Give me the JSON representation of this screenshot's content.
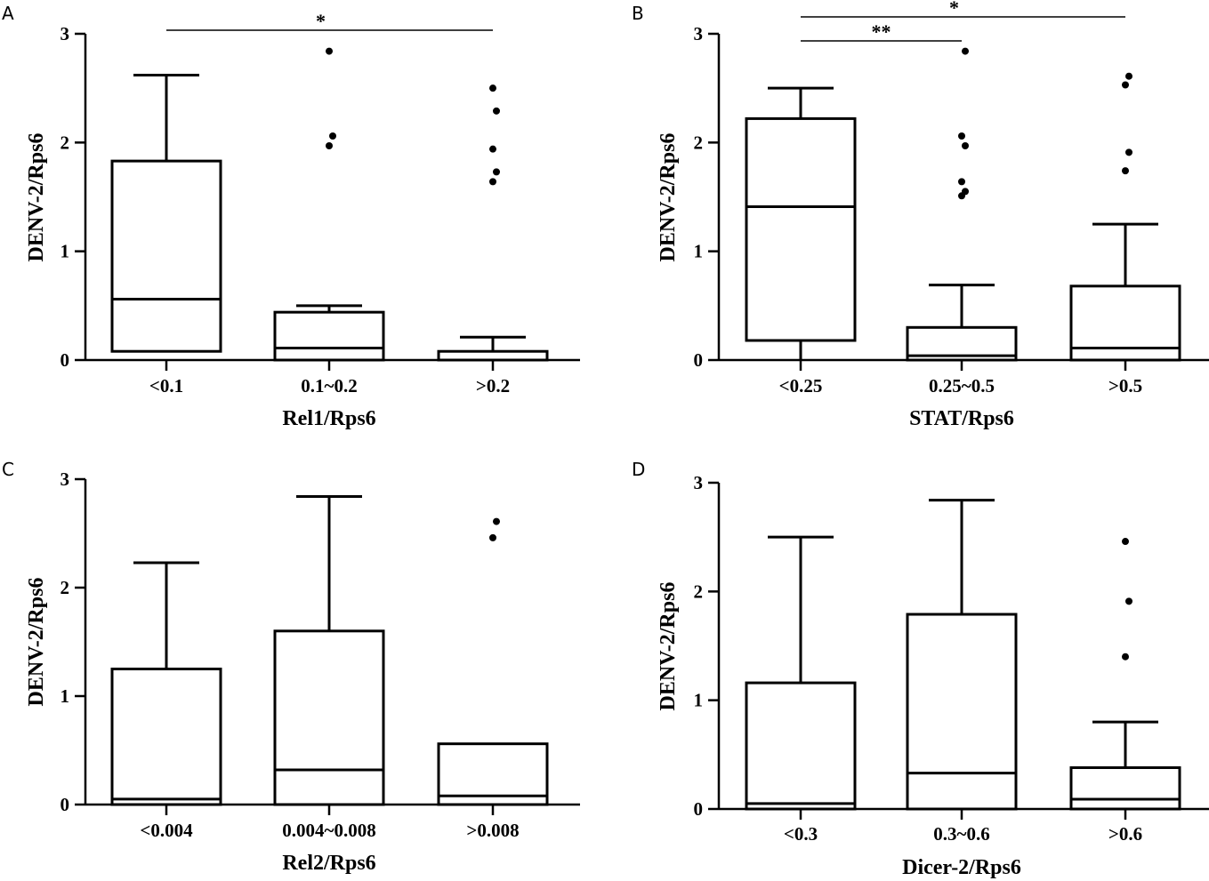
{
  "figure": {
    "description_free": true
  },
  "chart_data": [
    {
      "type": "box",
      "panel": "A",
      "xlabel": "Rel1/Rps6",
      "ylabel": "DENV-2/Rps6",
      "ylim": [
        0,
        3
      ],
      "yticks": [
        "0",
        "1",
        "2",
        "3"
      ],
      "categories": [
        "<0.1",
        "0.1~0.2",
        ">0.2"
      ],
      "boxes": [
        {
          "whisker_low": 0.08,
          "q1": 0.08,
          "median": 0.56,
          "q3": 1.83,
          "whisker_high": 2.62,
          "outliers": []
        },
        {
          "whisker_low": 0.0,
          "q1": 0.0,
          "median": 0.11,
          "q3": 0.44,
          "whisker_high": 0.5,
          "outliers": [
            1.97,
            2.06,
            2.84
          ]
        },
        {
          "whisker_low": 0.0,
          "q1": 0.0,
          "median": 0.0,
          "q3": 0.08,
          "whisker_high": 0.21,
          "outliers": [
            1.64,
            1.73,
            1.94,
            2.29,
            2.5
          ]
        }
      ],
      "significance": [
        {
          "from": 0,
          "to": 2,
          "label": "*"
        }
      ]
    },
    {
      "type": "box",
      "panel": "B",
      "xlabel": "STAT/Rps6",
      "ylabel": "DENV-2/Rps6",
      "ylim": [
        0,
        3
      ],
      "yticks": [
        "0",
        "1",
        "2",
        "3"
      ],
      "categories": [
        "<0.25",
        "0.25~0.5",
        ">0.5"
      ],
      "boxes": [
        {
          "whisker_low": 0.0,
          "q1": 0.18,
          "median": 1.41,
          "q3": 2.22,
          "whisker_high": 2.5,
          "outliers": []
        },
        {
          "whisker_low": 0.0,
          "q1": 0.0,
          "median": 0.04,
          "q3": 0.3,
          "whisker_high": 0.69,
          "outliers": [
            1.51,
            1.55,
            1.64,
            1.97,
            2.06,
            2.84
          ]
        },
        {
          "whisker_low": 0.0,
          "q1": 0.0,
          "median": 0.11,
          "q3": 0.68,
          "whisker_high": 1.25,
          "outliers": [
            1.74,
            1.91,
            2.53,
            2.61
          ]
        }
      ],
      "significance": [
        {
          "from": 0,
          "to": 2,
          "label": "*"
        },
        {
          "from": 0,
          "to": 1,
          "label": "**"
        }
      ]
    },
    {
      "type": "box",
      "panel": "C",
      "xlabel": "Rel2/Rps6",
      "ylabel": "DENV-2/Rps6",
      "ylim": [
        0,
        3
      ],
      "yticks": [
        "0",
        "1",
        "2",
        "3"
      ],
      "categories": [
        "<0.004",
        "0.004~0.008",
        ">0.008"
      ],
      "boxes": [
        {
          "whisker_low": 0.0,
          "q1": 0.0,
          "median": 0.05,
          "q3": 1.25,
          "whisker_high": 2.23,
          "outliers": []
        },
        {
          "whisker_low": 0.0,
          "q1": 0.0,
          "median": 0.32,
          "q3": 1.6,
          "whisker_high": 2.84,
          "outliers": []
        },
        {
          "whisker_low": 0.0,
          "q1": 0.0,
          "median": 0.08,
          "q3": 0.56,
          "whisker_high": 0.56,
          "outliers": [
            2.46,
            2.61
          ]
        }
      ],
      "significance": []
    },
    {
      "type": "box",
      "panel": "D",
      "xlabel": "Dicer-2/Rps6",
      "ylabel": "DENV-2/Rps6",
      "ylim": [
        0,
        3
      ],
      "yticks": [
        "0",
        "1",
        "2",
        "3"
      ],
      "categories": [
        "<0.3",
        "0.3~0.6",
        ">0.6"
      ],
      "boxes": [
        {
          "whisker_low": 0.0,
          "q1": 0.0,
          "median": 0.05,
          "q3": 1.16,
          "whisker_high": 2.5,
          "outliers": []
        },
        {
          "whisker_low": 0.0,
          "q1": 0.0,
          "median": 0.33,
          "q3": 1.79,
          "whisker_high": 2.84,
          "outliers": []
        },
        {
          "whisker_low": 0.0,
          "q1": 0.0,
          "median": 0.09,
          "q3": 0.38,
          "whisker_high": 0.8,
          "outliers": [
            1.4,
            1.91,
            2.46
          ]
        }
      ],
      "significance": []
    }
  ]
}
